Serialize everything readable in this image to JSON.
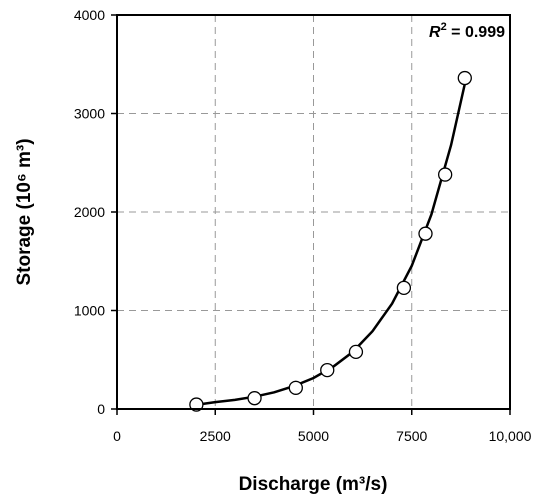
{
  "chart_data": {
    "type": "scatter",
    "xlabel": "Discharge (m³/s)",
    "ylabel": "Storage (10⁶ m³)",
    "annotation": {
      "prefix": "R",
      "sup": "2",
      "suffix": " = 0.999"
    },
    "xlim": [
      0,
      10000
    ],
    "ylim": [
      0,
      4000
    ],
    "x_ticks": [
      {
        "value": 0,
        "label": "0"
      },
      {
        "value": 2500,
        "label": "2500"
      },
      {
        "value": 5000,
        "label": "5000"
      },
      {
        "value": 7500,
        "label": "7500"
      },
      {
        "value": 10000,
        "label": "10,000"
      }
    ],
    "y_ticks": [
      {
        "value": 0,
        "label": "0"
      },
      {
        "value": 1000,
        "label": "1000"
      },
      {
        "value": 2000,
        "label": "2000"
      },
      {
        "value": 3000,
        "label": "3000"
      },
      {
        "value": 4000,
        "label": "4000"
      }
    ],
    "grid": true,
    "points": [
      {
        "x": 2020,
        "y": 45
      },
      {
        "x": 3500,
        "y": 110
      },
      {
        "x": 4550,
        "y": 215
      },
      {
        "x": 5350,
        "y": 395
      },
      {
        "x": 6080,
        "y": 580
      },
      {
        "x": 7300,
        "y": 1230
      },
      {
        "x": 7850,
        "y": 1780
      },
      {
        "x": 8350,
        "y": 2380
      },
      {
        "x": 8850,
        "y": 3360
      }
    ],
    "fit_curve": [
      {
        "x": 2050,
        "y": 45
      },
      {
        "x": 2500,
        "y": 70
      },
      {
        "x": 3000,
        "y": 92
      },
      {
        "x": 3500,
        "y": 125
      },
      {
        "x": 4000,
        "y": 170
      },
      {
        "x": 4500,
        "y": 232
      },
      {
        "x": 5000,
        "y": 315
      },
      {
        "x": 5500,
        "y": 428
      },
      {
        "x": 6000,
        "y": 580
      },
      {
        "x": 6500,
        "y": 790
      },
      {
        "x": 7000,
        "y": 1070
      },
      {
        "x": 7500,
        "y": 1455
      },
      {
        "x": 8000,
        "y": 1975
      },
      {
        "x": 8500,
        "y": 2680
      },
      {
        "x": 8850,
        "y": 3300
      }
    ]
  }
}
